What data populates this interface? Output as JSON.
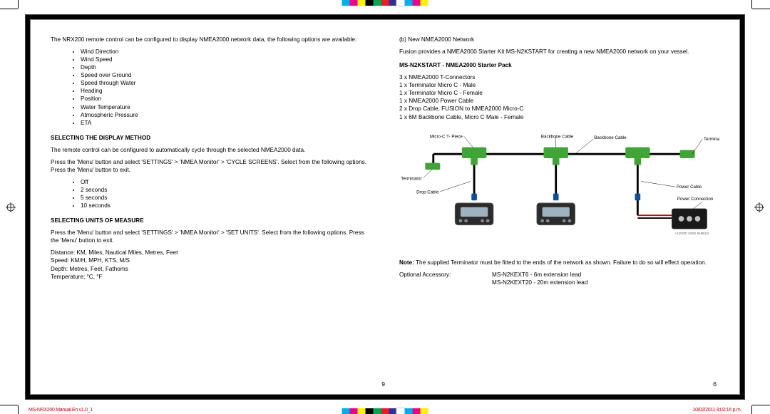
{
  "colorbar": [
    "#00aeef",
    "#ec008c",
    "#fff200",
    "#000000",
    "#00a651",
    "#ed1c24",
    "#2e3192",
    "#ffffff",
    "#00aeef",
    "#ec008c",
    "#fff200"
  ],
  "left": {
    "intro": "The NRX200 remote control can be configured to display NMEA2000 network data, the following options are available:",
    "options": [
      "Wind Direction",
      "Wind Speed",
      "Depth",
      "Speed over Ground",
      "Speed through Water",
      "Heading",
      "Position",
      "Water Temperature",
      "Atmospheric Pressure",
      "ETA"
    ],
    "h1": "SELECTING THE DISPLAY METHOD",
    "p1a": "The remote control can be configured to automatically cycle through the selected NMEA2000 data.",
    "p1b": "Press the 'Menu' button and select 'SETTINGS' > 'NMEA Monitor' > 'CYCLE SCREENS'. Select from the following options. Press the 'Menu' button to exit.",
    "cycle": [
      "Off",
      "2 seconds",
      "5 seconds",
      "10 seconds"
    ],
    "h2": "SELECTING UNITS OF MEASURE",
    "p2a": "Press the 'Menu' button and select 'SETTINGS' > 'NMEA Monitor' > 'SET UNITS'. Select from the following options. Press the 'Menu' button to exit.",
    "units": [
      "Distance: KM, Miles, Nautical Miles, Metres, Feet",
      "Speed: KM/H, MPH, KTS, M/S",
      "Depth: Metres, Feet, Fathoms",
      "Temperature; °C, °F"
    ],
    "pagenum": "9"
  },
  "right": {
    "p0a": "(b) New NMEA2000 Network",
    "p0b": "Fusion provides a NMEA2000 Starter Kit MS-N2KSTART for creating a new NMEA2000 network on your vessel.",
    "h1": "MS-N2KSTART - NMEA2000 Starter Pack",
    "pack": [
      "3 x NMEA2000 T-Connectors",
      "1 x Terminator Micro C - Male",
      "1 x Terminator Micro C - Female",
      "1 x NMEA2000 Power Cable",
      "2 x Drop Cable, FUSION to NMEA2000 Micro-C",
      "1 x 6M Backbone Cable, Micro C Male - Female"
    ],
    "diagram": {
      "labels": {
        "tpiece": "Micro-C T- Piece",
        "backbone": "Backbone Cable",
        "terminatorR": "Terminator",
        "terminatorL": "Terminator",
        "drop": "Drop Cable",
        "powercable": "Power Cable",
        "powerconn": "Power Connection"
      },
      "colors": {
        "cable": "#000000",
        "tee": "#3fa535",
        "term": "#3fa535",
        "blue": "#0b4f9e",
        "devicefill": "#2b2b2b",
        "powerbox": "#1a1a1a",
        "red": "#d40000",
        "labeltext": "#000000"
      }
    },
    "note_label": "Note:",
    "note": " The supplied Terminator must be fitted to the ends of the network as shown. Failure to do so will effect operation.",
    "acc_label": "Optional Accessory:",
    "acc": [
      "MS-N2KEXT6 - 6m extension lead",
      "MS-N2KEXT20 - 20m extension lead"
    ],
    "pagenum": "6"
  },
  "footer": {
    "left": "MS-NRX200 Manual En v1.0_1",
    "right": "10/02/2011  3:02:16 p.m."
  }
}
